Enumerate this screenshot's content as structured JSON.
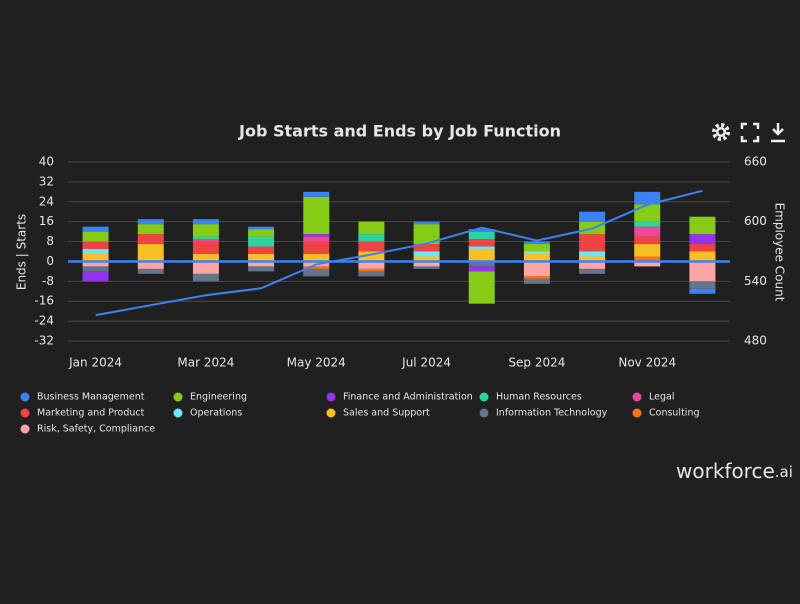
{
  "chart_data": {
    "type": "bar",
    "title": "Job Starts and Ends by Job Function",
    "y_label": "Ends | Starts",
    "y2_label": "Employee Count",
    "categories": [
      "Jan 2024",
      null,
      "Mar 2024",
      null,
      "May 2024",
      null,
      "Jul 2024",
      null,
      "Sep 2024",
      null,
      "Nov 2024",
      null
    ],
    "ylim": [
      -32,
      40
    ],
    "yticks": [
      -32,
      -24,
      -16,
      -8,
      0,
      8,
      16,
      24,
      32,
      40
    ],
    "y2lim": [
      480,
      660
    ],
    "y2ticks": [
      480,
      540,
      600,
      660
    ],
    "grid": true,
    "zero_line_color": "#3b82f6",
    "series": [
      {
        "name": "Business Management",
        "color": "#3b82f6",
        "values": [
          2,
          2,
          2,
          1,
          2,
          0,
          1,
          1,
          1,
          4,
          5,
          -2
        ]
      },
      {
        "name": "Engineering",
        "color": "#84cc16",
        "values": [
          4,
          4,
          5,
          3,
          15,
          5,
          8,
          -13,
          3,
          5,
          7,
          7
        ]
      },
      {
        "name": "Finance and Administration",
        "color": "#9333ea",
        "values": [
          -4,
          0,
          0,
          0,
          1,
          0,
          0,
          -2,
          0,
          0,
          0,
          4
        ]
      },
      {
        "name": "Human Resources",
        "color": "#2dd4a0",
        "values": [
          0,
          0,
          1,
          4,
          0,
          3,
          0,
          3,
          0,
          0,
          2,
          0
        ]
      },
      {
        "name": "Legal",
        "color": "#ec4899",
        "values": [
          0,
          0,
          1,
          0,
          2,
          0,
          0,
          0,
          0,
          0,
          4,
          0
        ]
      },
      {
        "name": "Marketing and Product",
        "color": "#ef4444",
        "values": [
          3,
          4,
          5,
          3,
          5,
          4,
          3,
          3,
          0,
          7,
          3,
          3
        ]
      },
      {
        "name": "Operations",
        "color": "#67e8f9",
        "values": [
          2,
          0,
          0,
          0,
          0,
          0,
          2,
          1,
          1,
          2,
          0,
          0
        ]
      },
      {
        "name": "Sales and Support",
        "color": "#fbbf24",
        "values": [
          3,
          7,
          3,
          3,
          3,
          4,
          2,
          5,
          3,
          2,
          5,
          4
        ]
      },
      {
        "name": "Information Technology",
        "color": "#64748b",
        "values": [
          -2,
          -2,
          -3,
          -2,
          -3,
          -2,
          -1,
          -2,
          -2,
          -2,
          0,
          -3
        ]
      },
      {
        "name": "Consulting",
        "color": "#f97316",
        "values": [
          0,
          0,
          0,
          0,
          -1,
          -1,
          0,
          0,
          -1,
          0,
          2,
          0
        ]
      },
      {
        "name": "Risk, Safety, Compliance",
        "color": "#fca5a5",
        "values": [
          -2,
          -3,
          -5,
          -2,
          -2,
          -3,
          -2,
          0,
          -6,
          -3,
          -2,
          -8
        ]
      }
    ],
    "line": {
      "color": "#3b82f6",
      "axis": "y2",
      "values": [
        506,
        516,
        526,
        533,
        557,
        567,
        578,
        594,
        581,
        593,
        617,
        631
      ]
    },
    "brand": "workforce",
    "brand_suffix": ".ai"
  }
}
